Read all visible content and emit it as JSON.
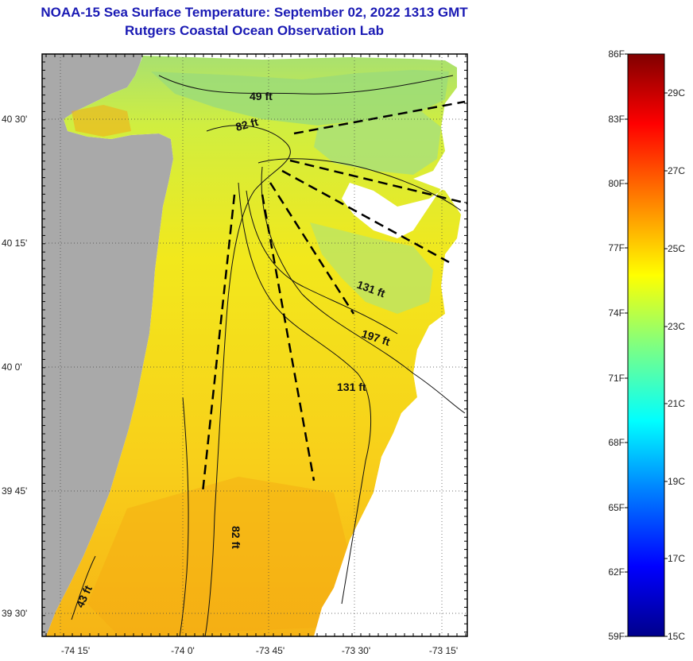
{
  "title": {
    "line1": "NOAA-15 Sea Surface Temperature:  September 02, 2022 1313 GMT",
    "line2": "Rutgers Coastal Ocean Observation Lab"
  },
  "map": {
    "lat_labels": [
      "40 30'",
      "40 15'",
      "40 0'",
      "39 45'",
      "39 30'"
    ],
    "lon_labels": [
      "-74 15'",
      "-74 0'",
      "-73 45'",
      "-73 30'",
      "-73 15'"
    ],
    "contour_labels": [
      "49 ft",
      "82 ft",
      "131 ft",
      "197 ft",
      "131 ft",
      "82 ft",
      "43 ft"
    ],
    "colors": {
      "land": "#a9a9a9",
      "ocean_no_data": "#ffffff"
    }
  },
  "colorbar": {
    "fahrenheit": [
      "86F",
      "83F",
      "80F",
      "77F",
      "74F",
      "71F",
      "68F",
      "65F",
      "62F",
      "59F"
    ],
    "celsius": [
      "29C",
      "27C",
      "25C",
      "23C",
      "21C",
      "19C",
      "17C",
      "15C"
    ],
    "colors": [
      "#800000",
      "#ff0000",
      "#ff8000",
      "#ffff00",
      "#80ff80",
      "#00ffff",
      "#0080ff",
      "#0000ff",
      "#00008b"
    ]
  }
}
